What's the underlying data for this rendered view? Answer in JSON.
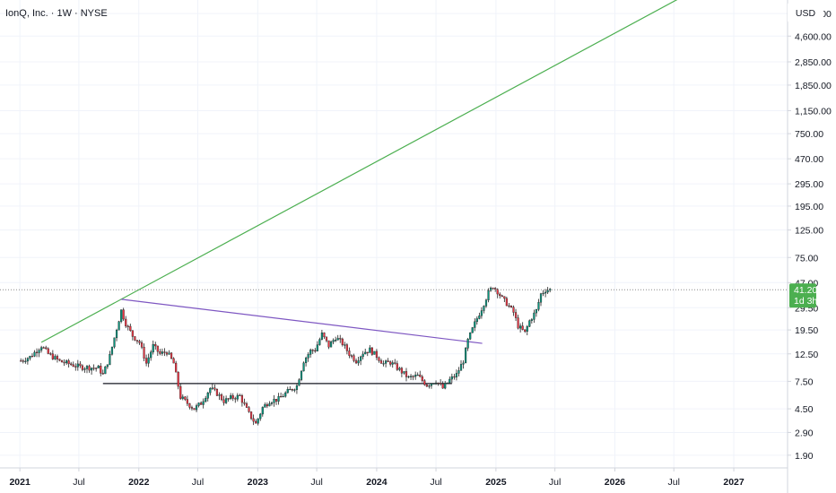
{
  "header": {
    "symbol_title": "IonQ, Inc. · 1W · NYSE",
    "currency": "USD"
  },
  "price_badge": {
    "price": "41.20",
    "countdown": "1d 3h",
    "color": "#4caf50"
  },
  "chart_data": {
    "type": "candlestick",
    "title": "IonQ, Inc. · 1W · NYSE",
    "y_scale": "log",
    "ylim": [
      1.5,
      9000
    ],
    "y_ticks": [
      "7,000.00",
      "4,600.00",
      "2,850.00",
      "1,850.00",
      "1,150.00",
      "750.00",
      "470.00",
      "295.00",
      "195.00",
      "125.00",
      "75.00",
      "47.00",
      "29.50",
      "19.50",
      "12.50",
      "7.50",
      "4.50",
      "2.90",
      "1.90"
    ],
    "x_ticks": [
      "2021",
      "Jul",
      "2022",
      "Jul",
      "2023",
      "Jul",
      "2024",
      "Jul",
      "2025",
      "Jul",
      "2026",
      "Jul",
      "2027"
    ],
    "x_range": [
      "2020-11-01",
      "2027-06-15"
    ],
    "last_price": 41.2,
    "colors": {
      "up": "#089981",
      "down": "#f23645",
      "wick": "#222222"
    },
    "price_path": [
      [
        "2021-01-04",
        11.0
      ],
      [
        "2021-02-01",
        11.8
      ],
      [
        "2021-03-08",
        14.5
      ],
      [
        "2021-03-29",
        12.5
      ],
      [
        "2021-05-03",
        10.9
      ],
      [
        "2021-07-05",
        9.8
      ],
      [
        "2021-08-30",
        9.6
      ],
      [
        "2021-09-13",
        8.5
      ],
      [
        "2021-10-04",
        12.0
      ],
      [
        "2021-10-25",
        20.0
      ],
      [
        "2021-11-08",
        28.0
      ],
      [
        "2021-11-22",
        22.0
      ],
      [
        "2021-12-13",
        17.5
      ],
      [
        "2022-01-03",
        15.5
      ],
      [
        "2022-01-24",
        10.5
      ],
      [
        "2022-02-14",
        14.5
      ],
      [
        "2022-03-07",
        12.5
      ],
      [
        "2022-03-28",
        13.0
      ],
      [
        "2022-04-18",
        10.5
      ],
      [
        "2022-05-09",
        5.6
      ],
      [
        "2022-05-30",
        5.0
      ],
      [
        "2022-06-20",
        4.5
      ],
      [
        "2022-07-11",
        5.0
      ],
      [
        "2022-08-08",
        6.6
      ],
      [
        "2022-08-29",
        6.0
      ],
      [
        "2022-09-19",
        5.2
      ],
      [
        "2022-10-10",
        5.5
      ],
      [
        "2022-11-07",
        5.7
      ],
      [
        "2022-12-05",
        4.1
      ],
      [
        "2022-12-26",
        3.4
      ],
      [
        "2023-01-16",
        4.6
      ],
      [
        "2023-02-06",
        5.2
      ],
      [
        "2023-03-06",
        5.4
      ],
      [
        "2023-04-03",
        6.2
      ],
      [
        "2023-05-01",
        6.9
      ],
      [
        "2023-05-22",
        11.0
      ],
      [
        "2023-06-12",
        13.2
      ],
      [
        "2023-06-26",
        13.5
      ],
      [
        "2023-07-17",
        18.0
      ],
      [
        "2023-08-07",
        14.5
      ],
      [
        "2023-08-28",
        17.0
      ],
      [
        "2023-09-18",
        15.2
      ],
      [
        "2023-10-09",
        12.5
      ],
      [
        "2023-10-30",
        11.0
      ],
      [
        "2023-11-20",
        12.8
      ],
      [
        "2023-12-11",
        13.5
      ],
      [
        "2024-01-01",
        12.0
      ],
      [
        "2024-01-22",
        10.4
      ],
      [
        "2024-02-12",
        10.7
      ],
      [
        "2024-03-11",
        9.3
      ],
      [
        "2024-04-08",
        8.0
      ],
      [
        "2024-05-06",
        8.3
      ],
      [
        "2024-06-03",
        7.0
      ],
      [
        "2024-07-01",
        7.6
      ],
      [
        "2024-07-22",
        6.6
      ],
      [
        "2024-08-12",
        7.7
      ],
      [
        "2024-09-02",
        8.5
      ],
      [
        "2024-09-23",
        11.0
      ],
      [
        "2024-10-07",
        16.0
      ],
      [
        "2024-10-28",
        22.0
      ],
      [
        "2024-11-18",
        29.0
      ],
      [
        "2024-12-09",
        39.0
      ],
      [
        "2024-12-23",
        44.0
      ],
      [
        "2025-01-06",
        40.0
      ],
      [
        "2025-01-20",
        35.0
      ],
      [
        "2025-02-03",
        32.0
      ],
      [
        "2025-02-24",
        27.0
      ],
      [
        "2025-03-10",
        21.0
      ],
      [
        "2025-03-31",
        18.5
      ],
      [
        "2025-04-14",
        23.0
      ],
      [
        "2025-05-05",
        28.0
      ],
      [
        "2025-05-19",
        38.0
      ],
      [
        "2025-06-02",
        41.0
      ],
      [
        "2025-06-16",
        41.2
      ]
    ],
    "trendlines": [
      {
        "name": "rising-trendline",
        "color": "#4caf50",
        "points": [
          [
            "2021-03-08",
            15.5
          ],
          [
            "2021-11-08",
            34.5
          ]
        ],
        "extend": "right"
      },
      {
        "name": "descending-resistance-line",
        "color": "#7e57c2",
        "points": [
          [
            "2021-11-08",
            34.5
          ],
          [
            "2024-11-20",
            15.2
          ]
        ],
        "extend": "none"
      },
      {
        "name": "horizontal-support-line",
        "color": "#131722",
        "points": [
          [
            "2021-09-13",
            7.2
          ],
          [
            "2024-08-19",
            7.2
          ]
        ],
        "extend": "none"
      }
    ]
  }
}
